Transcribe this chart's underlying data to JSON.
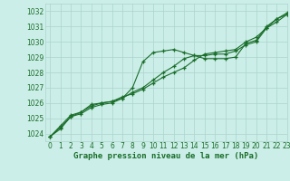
{
  "title": "Graphe pression niveau de la mer (hPa)",
  "bg_color": "#cceee8",
  "grid_color": "#aad4cc",
  "line_color": "#1a6e2a",
  "xlim": [
    -0.5,
    23
  ],
  "ylim": [
    1023.5,
    1032.5
  ],
  "yticks": [
    1024,
    1025,
    1026,
    1027,
    1028,
    1029,
    1030,
    1031,
    1032
  ],
  "xticks": [
    0,
    1,
    2,
    3,
    4,
    5,
    6,
    7,
    8,
    9,
    10,
    11,
    12,
    13,
    14,
    15,
    16,
    17,
    18,
    19,
    20,
    21,
    22,
    23
  ],
  "series1": [
    1023.8,
    1024.4,
    1025.1,
    1025.3,
    1025.7,
    1025.9,
    1026.0,
    1026.3,
    1027.0,
    1028.7,
    1029.3,
    1029.4,
    1029.5,
    1029.3,
    1029.1,
    1028.9,
    1028.9,
    1028.9,
    1029.0,
    1029.9,
    1030.1,
    1031.0,
    1031.5,
    1031.8
  ],
  "series2": [
    1023.8,
    1024.3,
    1025.1,
    1025.4,
    1025.9,
    1026.0,
    1026.1,
    1026.4,
    1026.6,
    1026.9,
    1027.3,
    1027.7,
    1028.0,
    1028.3,
    1028.8,
    1029.2,
    1029.3,
    1029.4,
    1029.5,
    1030.0,
    1030.3,
    1030.9,
    1031.5,
    1031.9
  ],
  "series3": [
    1023.8,
    1024.5,
    1025.2,
    1025.4,
    1025.8,
    1026.0,
    1026.1,
    1026.3,
    1026.7,
    1027.0,
    1027.5,
    1028.0,
    1028.4,
    1028.9,
    1029.1,
    1029.1,
    1029.2,
    1029.2,
    1029.4,
    1029.8,
    1030.0,
    1030.9,
    1031.3,
    1031.8
  ],
  "title_fontsize": 6.5,
  "tick_fontsize": 5.5
}
